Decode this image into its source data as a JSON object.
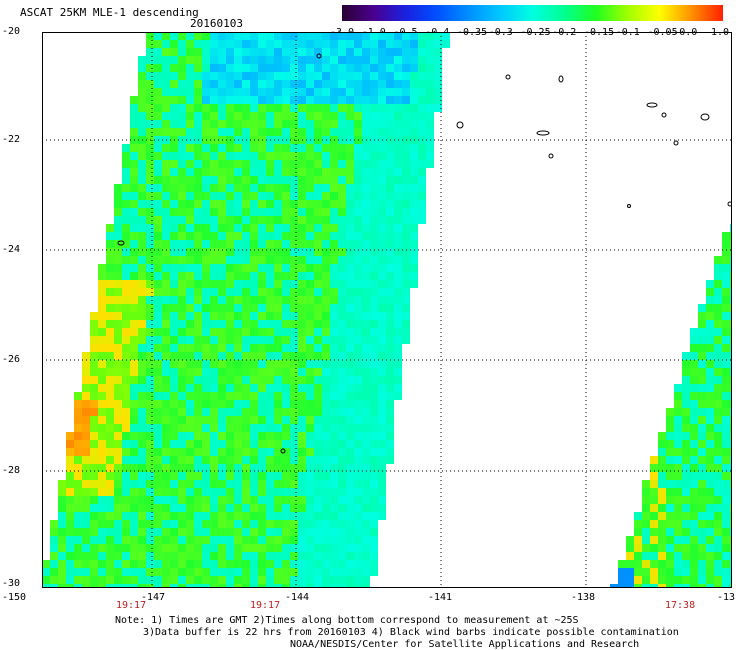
{
  "header": {
    "title": "ASCAT 25KM MLE-1 descending",
    "date": "20160103"
  },
  "colorbar": {
    "labels": [
      "-3.0",
      "-1.0",
      "-0.5",
      "-0.4",
      "-0.35",
      "-0.3",
      "-0.25",
      "-0.2",
      "-0.15",
      "-0.1",
      "-0.05",
      "0.0",
      "1.0"
    ],
    "colors": [
      "#2a0030",
      "#4a0090",
      "#1a20e0",
      "#0050ff",
      "#0090ff",
      "#00c8ff",
      "#00ffe0",
      "#00ff90",
      "#20ff20",
      "#a0ff00",
      "#ffff00",
      "#ff9000",
      "#ff2000"
    ]
  },
  "axes": {
    "lat_labels": [
      "-20",
      "-22",
      "-24",
      "-26",
      "-28",
      "-30"
    ],
    "lon_labels": [
      "-150",
      "-147",
      "-144",
      "-141",
      "-138",
      "-13"
    ]
  },
  "times": [
    "19:17",
    "19:17",
    "17:38"
  ],
  "notes": {
    "line1": "Note: 1) Times are GMT 2)Times along bottom correspond to measurement at ~25S",
    "line2": "3)Data buffer is 22 hrs from 20160103 4) Black wind barbs indicate possible contamination",
    "line3": "NOAA/NESDIS/Center for Satellite Applications and Research"
  }
}
